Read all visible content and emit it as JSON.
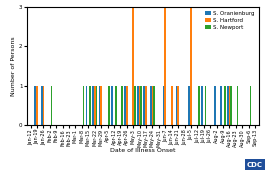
{
  "chart_data": {
    "type": "bar",
    "xlabel": "Date of Illness Onset",
    "ylabel": "Number of Persons",
    "categories": [
      "Jan-12",
      "Jan-19",
      "Jan-26",
      "Feb-2",
      "Feb-9",
      "Feb-16",
      "Feb-23",
      "Mar-1",
      "Mar-8",
      "Mar-15",
      "Mar-22",
      "Mar-29",
      "Apr-5",
      "Apr-12",
      "Apr-19",
      "Apr-26",
      "May-3",
      "May-10",
      "May-17",
      "May-24",
      "May-31",
      "Jun-7",
      "Jun-14",
      "Jun-21",
      "Jun-28",
      "Jul-5",
      "Jul-12",
      "Jul-19",
      "Jul-26",
      "Aug-2",
      "Aug-9",
      "Aug-16",
      "Aug-23",
      "Aug-30",
      "Sep-6",
      "Sep-13"
    ],
    "series": [
      {
        "name": "S. Oranienburg",
        "values": [
          0,
          1,
          1,
          0,
          0,
          0,
          0,
          0,
          0,
          1,
          1,
          1,
          0,
          1,
          0,
          1,
          0,
          1,
          1,
          1,
          0,
          1,
          0,
          1,
          0,
          1,
          0,
          1,
          0,
          1,
          1,
          1,
          0,
          0,
          0,
          0
        ]
      },
      {
        "name": "S. Hartford",
        "values": [
          0,
          1,
          1,
          0,
          0,
          0,
          0,
          0,
          0,
          0,
          1,
          1,
          0,
          0,
          0,
          1,
          3,
          1,
          1,
          1,
          0,
          3,
          1,
          1,
          0,
          3,
          0,
          0,
          0,
          0,
          0,
          1,
          0,
          0,
          0,
          0
        ]
      },
      {
        "name": "S. Newport",
        "values": [
          0,
          0,
          0,
          1,
          0,
          0,
          0,
          0,
          1,
          1,
          1,
          0,
          1,
          1,
          1,
          0,
          1,
          1,
          0,
          1,
          0,
          0,
          0,
          0,
          0,
          0,
          1,
          1,
          0,
          0,
          1,
          1,
          1,
          0,
          1,
          0
        ]
      }
    ],
    "ylim": [
      0,
      3
    ],
    "yticks": [
      0,
      1,
      2,
      3
    ],
    "legend": "upper right",
    "annotations": [
      "CDC"
    ]
  }
}
